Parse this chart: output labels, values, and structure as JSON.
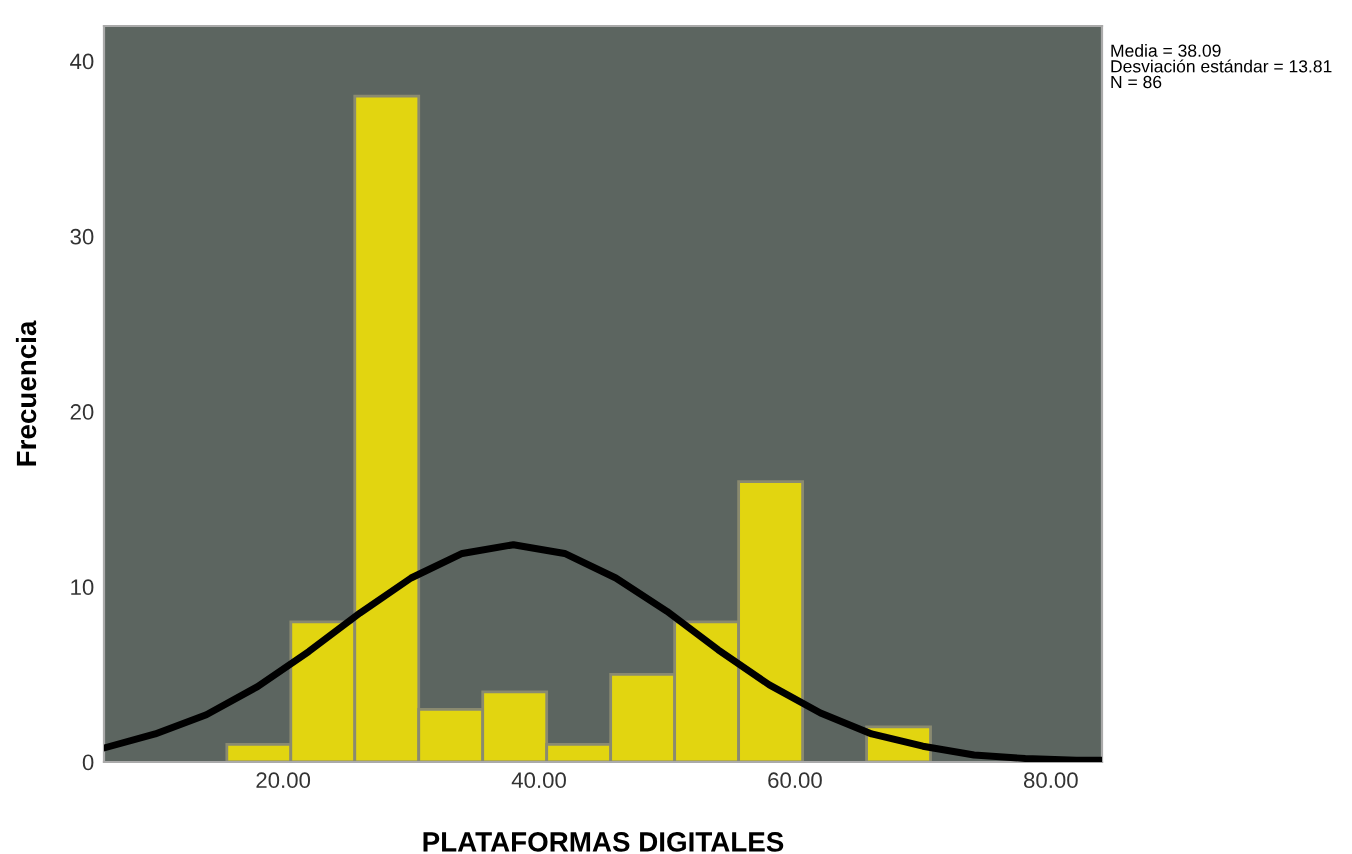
{
  "chart_data": {
    "type": "histogram",
    "xlabel": "PLATAFORMAS DIGITALES",
    "ylabel": "Frecuencia",
    "bins": [
      15.6,
      20.6,
      25.6,
      30.6,
      35.6,
      40.6,
      45.6,
      50.6,
      55.6,
      60.6,
      65.6,
      70.6
    ],
    "values": [
      1,
      8,
      38,
      3,
      4,
      1,
      5,
      8,
      16,
      0,
      2
    ],
    "color": "#e2d510",
    "series": [
      {
        "type": "line",
        "color": "#000000",
        "x": [
          6,
          10,
          14,
          18,
          22,
          26,
          30,
          34,
          38,
          42,
          46,
          50,
          54,
          58,
          62,
          66,
          70,
          74,
          78,
          82,
          84
        ],
        "values": [
          0.8,
          1.6,
          2.7,
          4.3,
          6.3,
          8.5,
          10.5,
          11.9,
          12.4,
          11.9,
          10.5,
          8.6,
          6.4,
          4.4,
          2.8,
          1.6,
          0.9,
          0.4,
          0.2,
          0.1,
          0.1
        ]
      }
    ],
    "xlim": [
      6,
      84
    ],
    "ylim": [
      0,
      42
    ],
    "xticks": [
      {
        "value": 20,
        "label": "20.00"
      },
      {
        "value": 40,
        "label": "40.00"
      },
      {
        "value": 60,
        "label": "60.00"
      },
      {
        "value": 80,
        "label": "80.00"
      }
    ],
    "yticks": [
      0,
      10,
      20,
      30,
      40
    ],
    "annotations": [
      "Media = 38.09\nDesviación estándar = 13.81\nN = 86"
    ],
    "grid": false,
    "legend": false
  }
}
